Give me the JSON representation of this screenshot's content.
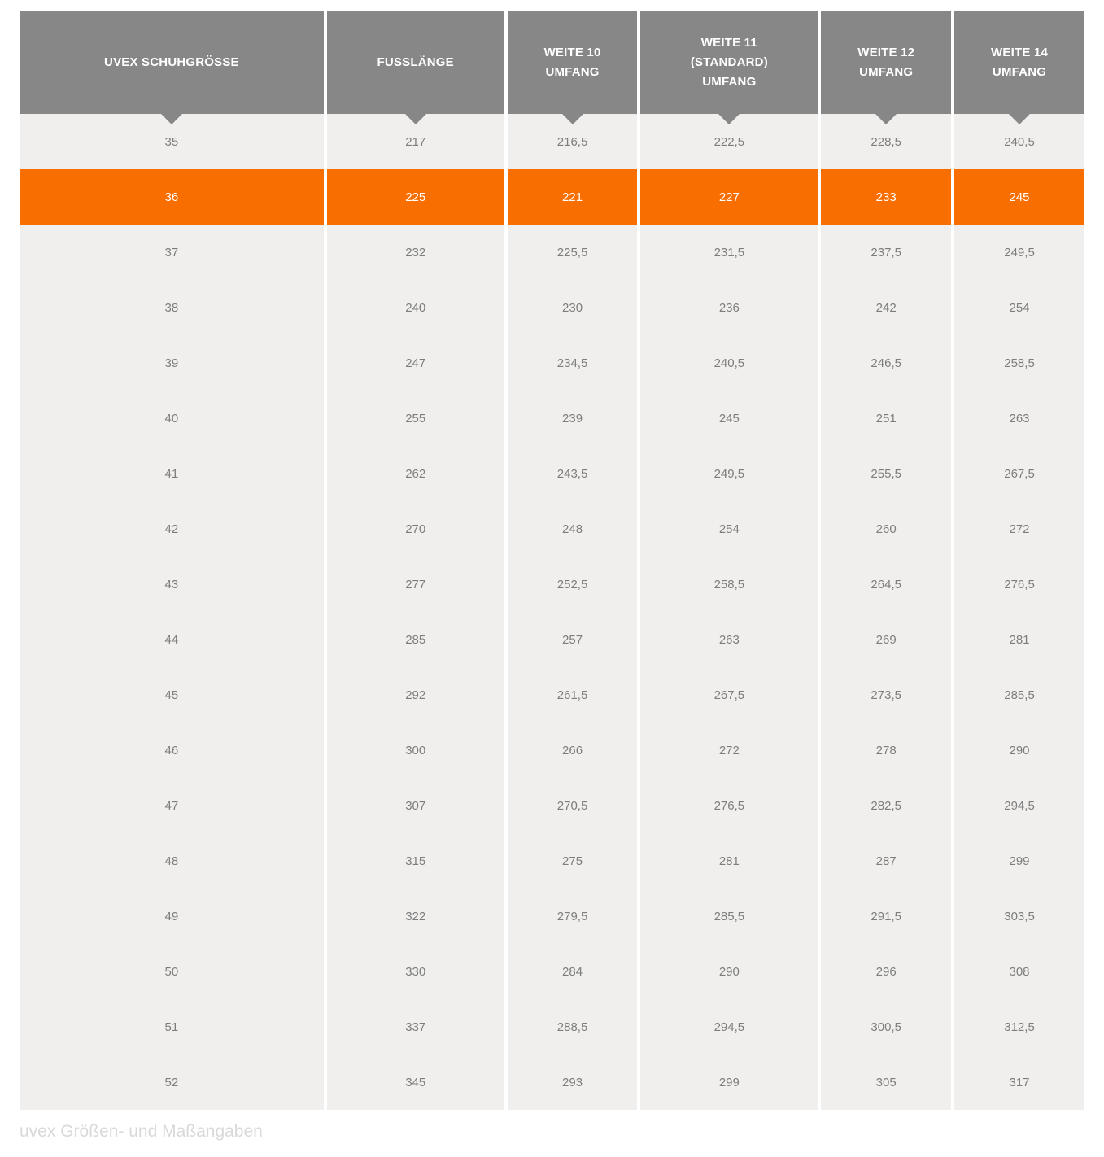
{
  "chart_data": {
    "type": "table",
    "title": "uvex Größen- und Maßangaben",
    "columns": [
      "UVEX SCHUHGRÖSSE",
      "FUSSLÄNGE",
      "WEITE 10 UMFANG",
      "WEITE 11 (STANDARD) UMFANG",
      "WEITE 12 UMFANG",
      "WEITE 14 UMFANG"
    ],
    "columns_multiline": [
      [
        "UVEX SCHUHGRÖSSE"
      ],
      [
        "FUSSLÄNGE"
      ],
      [
        "WEITE 10",
        "UMFANG"
      ],
      [
        "WEITE 11",
        "(STANDARD)",
        "UMFANG"
      ],
      [
        "WEITE 12",
        "UMFANG"
      ],
      [
        "WEITE 14",
        "UMFANG"
      ]
    ],
    "rows": [
      [
        "35",
        "217",
        "216,5",
        "222,5",
        "228,5",
        "240,5"
      ],
      [
        "36",
        "225",
        "221",
        "227",
        "233",
        "245"
      ],
      [
        "37",
        "232",
        "225,5",
        "231,5",
        "237,5",
        "249,5"
      ],
      [
        "38",
        "240",
        "230",
        "236",
        "242",
        "254"
      ],
      [
        "39",
        "247",
        "234,5",
        "240,5",
        "246,5",
        "258,5"
      ],
      [
        "40",
        "255",
        "239",
        "245",
        "251",
        "263"
      ],
      [
        "41",
        "262",
        "243,5",
        "249,5",
        "255,5",
        "267,5"
      ],
      [
        "42",
        "270",
        "248",
        "254",
        "260",
        "272"
      ],
      [
        "43",
        "277",
        "252,5",
        "258,5",
        "264,5",
        "276,5"
      ],
      [
        "44",
        "285",
        "257",
        "263",
        "269",
        "281"
      ],
      [
        "45",
        "292",
        "261,5",
        "267,5",
        "273,5",
        "285,5"
      ],
      [
        "46",
        "300",
        "266",
        "272",
        "278",
        "290"
      ],
      [
        "47",
        "307",
        "270,5",
        "276,5",
        "282,5",
        "294,5"
      ],
      [
        "48",
        "315",
        "275",
        "281",
        "287",
        "299"
      ],
      [
        "49",
        "322",
        "279,5",
        "285,5",
        "291,5",
        "303,5"
      ],
      [
        "50",
        "330",
        "284",
        "290",
        "296",
        "308"
      ],
      [
        "51",
        "337",
        "288,5",
        "294,5",
        "300,5",
        "312,5"
      ],
      [
        "52",
        "345",
        "293",
        "299",
        "305",
        "317"
      ]
    ],
    "highlighted_row_index": 1,
    "highlighted_row_size": "36",
    "legend_position": "none",
    "grid": false
  },
  "caption": "uvex Größen- und Maßangaben",
  "colors": {
    "header_bg": "#878787",
    "header_text": "#ffffff",
    "body_bg": "#f0efee",
    "cell_text": "#7d7d7d",
    "highlight_bg": "#f96e00",
    "highlight_text": "#ffffff",
    "caption_text": "#d9d9d9",
    "page_bg": "#ffffff"
  }
}
